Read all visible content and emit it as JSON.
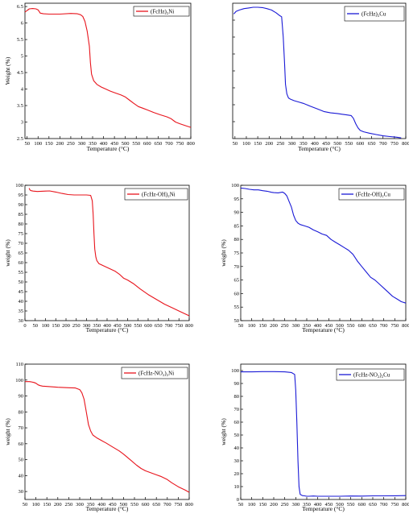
{
  "chart_data": [
    {
      "type": "line",
      "xlabel": "Temperature (°C)",
      "ylabel": "Weight (%)",
      "xlim": [
        40,
        800
      ],
      "ylim": [
        2.5,
        6.6
      ],
      "xticks": [
        50,
        100,
        150,
        200,
        250,
        300,
        350,
        400,
        450,
        500,
        550,
        600,
        650,
        700,
        750,
        800
      ],
      "yticks": [
        2.5,
        3.0,
        3.5,
        4.0,
        4.5,
        5.0,
        5.5,
        6.0,
        6.5
      ],
      "legend_position": "top-right",
      "series": [
        {
          "name": "(FcHz)₂Ni",
          "color": "#e8141c",
          "x": [
            40,
            50,
            60,
            75,
            90,
            100,
            110,
            125,
            150,
            200,
            250,
            280,
            295,
            305,
            315,
            325,
            335,
            340,
            345,
            355,
            370,
            390,
            410,
            430,
            450,
            480,
            500,
            520,
            540,
            560,
            580,
            600,
            630,
            660,
            690,
            710,
            730,
            750,
            780,
            800
          ],
          "y": [
            6.33,
            6.38,
            6.43,
            6.44,
            6.43,
            6.4,
            6.3,
            6.28,
            6.27,
            6.27,
            6.29,
            6.28,
            6.25,
            6.2,
            6.05,
            5.75,
            5.3,
            4.8,
            4.45,
            4.25,
            4.14,
            4.06,
            4.0,
            3.94,
            3.89,
            3.82,
            3.76,
            3.66,
            3.56,
            3.47,
            3.42,
            3.37,
            3.29,
            3.22,
            3.16,
            3.1,
            3.0,
            2.95,
            2.88,
            2.84
          ]
        }
      ]
    },
    {
      "type": "line",
      "xlabel": "Temperature (°C)",
      "ylabel": "",
      "xlim": [
        40,
        800
      ],
      "ylim": [
        0,
        100
      ],
      "xticks": [
        50,
        100,
        150,
        200,
        250,
        300,
        350,
        400,
        450,
        500,
        550,
        600,
        650,
        700,
        750,
        800
      ],
      "yticks": [],
      "legend_position": "top-right",
      "series": [
        {
          "name": "(FcHz)₂Cu",
          "color": "#1a1ad6",
          "x": [
            45,
            55,
            70,
            90,
            110,
            130,
            150,
            170,
            190,
            210,
            230,
            245,
            255,
            262,
            268,
            272,
            278,
            285,
            295,
            310,
            330,
            350,
            380,
            410,
            440,
            470,
            500,
            520,
            540,
            560,
            570,
            580,
            590,
            600,
            615,
            640,
            670,
            700,
            730,
            760,
            780
          ],
          "y": [
            92,
            94,
            95,
            96,
            96.5,
            97,
            97,
            96.8,
            96,
            95,
            93,
            91,
            90,
            75,
            55,
            40,
            33,
            30,
            29,
            28,
            27,
            26,
            24,
            22,
            20,
            19,
            18.5,
            18,
            17.5,
            17,
            15,
            11,
            8,
            6,
            5,
            4,
            3,
            2,
            1.5,
            1,
            0.5
          ]
        }
      ]
    },
    {
      "type": "line",
      "xlabel": "Temperature (°C)",
      "ylabel": "weight (%)",
      "xlim": [
        0,
        800
      ],
      "ylim": [
        30,
        100
      ],
      "xticks": [
        0,
        50,
        100,
        150,
        200,
        250,
        300,
        350,
        400,
        450,
        500,
        550,
        600,
        650,
        700,
        750,
        800
      ],
      "yticks": [
        30,
        35,
        40,
        45,
        50,
        55,
        60,
        65,
        70,
        75,
        80,
        85,
        90,
        95,
        100
      ],
      "legend_position": "top-right",
      "series": [
        {
          "name": "(FcHz-OH)₂Ni",
          "color": "#e8141c",
          "x": [
            20,
            25,
            30,
            40,
            60,
            80,
            100,
            120,
            150,
            180,
            210,
            240,
            270,
            300,
            320,
            328,
            332,
            336,
            340,
            345,
            350,
            360,
            380,
            400,
            420,
            440,
            460,
            480,
            500,
            530,
            560,
            600,
            640,
            680,
            720,
            760,
            780,
            800
          ],
          "y": [
            98.5,
            97.5,
            97.2,
            97,
            96.8,
            96.9,
            97,
            97.1,
            96.5,
            95.8,
            95.2,
            95,
            95,
            95,
            94.8,
            92,
            85,
            75,
            67,
            63,
            61,
            59.5,
            58.5,
            57.5,
            56.5,
            55.5,
            54,
            52,
            51,
            49,
            46.5,
            43.5,
            41,
            38.5,
            36.5,
            34.5,
            33.5,
            32.5
          ]
        }
      ]
    },
    {
      "type": "line",
      "xlabel": "Temperature (°C)",
      "ylabel": "weight (%)",
      "xlim": [
        50,
        800
      ],
      "ylim": [
        50,
        100
      ],
      "xticks": [
        50,
        100,
        150,
        200,
        250,
        300,
        350,
        400,
        450,
        500,
        550,
        600,
        650,
        700,
        750,
        800
      ],
      "yticks": [
        50,
        55,
        60,
        65,
        70,
        75,
        80,
        85,
        90,
        95,
        100
      ],
      "legend_position": "top-right",
      "series": [
        {
          "name": "(FcHz-OH)₂Cu",
          "color": "#1a1ad6",
          "x": [
            50,
            70,
            90,
            110,
            130,
            150,
            170,
            190,
            200,
            220,
            240,
            250,
            260,
            270,
            280,
            290,
            300,
            310,
            320,
            340,
            360,
            380,
            400,
            420,
            440,
            460,
            480,
            500,
            520,
            540,
            560,
            580,
            600,
            620,
            640,
            660,
            680,
            700,
            720,
            740,
            760,
            780,
            800
          ],
          "y": [
            99,
            98.8,
            98.5,
            98.3,
            98.3,
            98,
            97.8,
            97.4,
            97.3,
            97.2,
            97.5,
            97,
            96,
            94,
            92,
            89,
            87,
            86,
            85.5,
            85,
            84.5,
            83.5,
            82.8,
            82,
            81.5,
            80,
            79,
            78,
            77,
            76,
            74.5,
            72,
            70,
            68,
            66,
            65,
            63.5,
            62,
            60.5,
            59,
            58,
            57,
            56.5
          ]
        }
      ]
    },
    {
      "type": "line",
      "xlabel": "Temperature (°C)",
      "ylabel": "weight (%)",
      "xlim": [
        50,
        800
      ],
      "ylim": [
        25,
        110
      ],
      "xticks": [
        50,
        100,
        150,
        200,
        250,
        300,
        350,
        400,
        450,
        500,
        550,
        600,
        650,
        700,
        750,
        800
      ],
      "yticks": [
        30,
        40,
        50,
        60,
        70,
        80,
        90,
        100,
        110
      ],
      "legend_position": "top-right",
      "series": [
        {
          "name": "(FcHz-NO₂)₂Ni",
          "color": "#e8141c",
          "x": [
            50,
            60,
            70,
            80,
            90,
            100,
            110,
            120,
            130,
            150,
            200,
            250,
            280,
            300,
            310,
            320,
            330,
            340,
            350,
            360,
            370,
            380,
            400,
            420,
            450,
            480,
            500,
            530,
            560,
            580,
            600,
            620,
            650,
            670,
            700,
            720,
            750,
            780,
            800
          ],
          "y": [
            99,
            99,
            99,
            98.8,
            98.5,
            98,
            97,
            96.5,
            96.2,
            96,
            95.5,
            95.2,
            95,
            94,
            92,
            88,
            80,
            72,
            68,
            65.5,
            64.5,
            63.5,
            62,
            60.5,
            58,
            55.5,
            53.5,
            50,
            46.5,
            44.5,
            43,
            42,
            40.5,
            39.5,
            37.5,
            35.5,
            33,
            31,
            29.5
          ]
        }
      ]
    },
    {
      "type": "line",
      "xlabel": "Temperature (°C)",
      "ylabel": "weight (%)",
      "xlim": [
        50,
        800
      ],
      "ylim": [
        0,
        105
      ],
      "xticks": [
        50,
        100,
        150,
        200,
        250,
        300,
        350,
        400,
        450,
        500,
        550,
        600,
        650,
        700,
        750,
        800
      ],
      "yticks": [
        0,
        10,
        20,
        30,
        40,
        50,
        60,
        70,
        80,
        90,
        100
      ],
      "legend_position": "top-right",
      "series": [
        {
          "name": "(FcHz-NO₂)₂Cu",
          "color": "#1a1ad6",
          "x": [
            50,
            100,
            150,
            200,
            250,
            280,
            295,
            300,
            305,
            310,
            315,
            320,
            330,
            340,
            350,
            360,
            380,
            400,
            450,
            500,
            550,
            600,
            650,
            700,
            750,
            800
          ],
          "y": [
            99,
            99,
            99.2,
            99.2,
            99,
            98.5,
            97,
            85,
            60,
            30,
            10,
            4,
            3,
            2.8,
            2.5,
            2.5,
            2.7,
            2.5,
            2.5,
            2.5,
            2.7,
            2.6,
            2.8,
            2.8,
            2.9,
            3
          ]
        }
      ]
    }
  ]
}
